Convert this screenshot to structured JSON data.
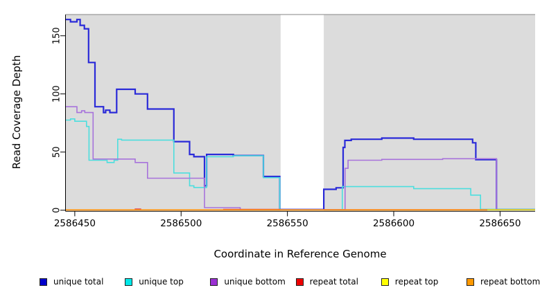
{
  "chart_data": {
    "type": "line",
    "subtype": "step-coverage-plot",
    "title": "",
    "xlabel": "Coordinate in Reference Genome",
    "ylabel": "Read Coverage Depth",
    "xlim": [
      2586445.8,
      2586666.5
    ],
    "ylim": [
      0,
      168
    ],
    "x_ticks": [
      2586450,
      2586500,
      2586550,
      2586600,
      2586650
    ],
    "x_tick_labels": [
      "2586450",
      "2586500",
      "2586550",
      "2586600",
      "2586650"
    ],
    "y_ticks": [
      0,
      50,
      100,
      150
    ],
    "y_tick_labels": [
      "0",
      "50",
      "100",
      "150"
    ],
    "grid": false,
    "legend_position": "bottom",
    "panel_bg": "#dcdcdc",
    "panel_top_border": "#858585",
    "axis_color": "#000000",
    "no_data_gap": {
      "from": 2586546.8,
      "to": 2586567.1,
      "fill": "#ffffff"
    },
    "series": [
      {
        "name": "unique total",
        "line_color": "#2a2ad8",
        "legend_color": "#0000cc",
        "line_width": 2.2,
        "end": 2586666.5,
        "points": [
          [
            2586445.8,
            164
          ],
          [
            2586448,
            162
          ],
          [
            2586451,
            164
          ],
          [
            2586452.5,
            159
          ],
          [
            2586454.5,
            156
          ],
          [
            2586456.5,
            127
          ],
          [
            2586459.5,
            89
          ],
          [
            2586463.5,
            84
          ],
          [
            2586464.5,
            86
          ],
          [
            2586466.5,
            84
          ],
          [
            2586469.7,
            104
          ],
          [
            2586478.4,
            100
          ],
          [
            2586484.2,
            87
          ],
          [
            2586496.6,
            59
          ],
          [
            2586504,
            48
          ],
          [
            2586506,
            46
          ],
          [
            2586511,
            21
          ],
          [
            2586512,
            48
          ],
          [
            2586524.6,
            47
          ],
          [
            2586538.7,
            29
          ],
          [
            2586546.4,
            0.6
          ],
          [
            2586567.1,
            18
          ],
          [
            2586572.9,
            19.3
          ],
          [
            2586576.2,
            54
          ],
          [
            2586577,
            60
          ],
          [
            2586580,
            61
          ],
          [
            2586594.4,
            62
          ],
          [
            2586609.4,
            61
          ],
          [
            2586637.1,
            58
          ],
          [
            2586638.6,
            43.5
          ],
          [
            2586648.3,
            0.6
          ]
        ]
      },
      {
        "name": "unique top",
        "line_color": "#4cdede",
        "legend_color": "#00e8e8",
        "line_width": 1.6,
        "end": 2586666.5,
        "points": [
          [
            2586445.8,
            77.5
          ],
          [
            2586448,
            78.5
          ],
          [
            2586450,
            76.5
          ],
          [
            2586455.5,
            72
          ],
          [
            2586456.7,
            43
          ],
          [
            2586465.2,
            41
          ],
          [
            2586468.5,
            43
          ],
          [
            2586470.2,
            61
          ],
          [
            2586472,
            60.3
          ],
          [
            2586496.6,
            32
          ],
          [
            2586504,
            21
          ],
          [
            2586506,
            19.5
          ],
          [
            2586512,
            46
          ],
          [
            2586524.6,
            46.8
          ],
          [
            2586538.7,
            28
          ],
          [
            2586546.4,
            0.4
          ],
          [
            2586575.8,
            20.3
          ],
          [
            2586609.4,
            18.5
          ],
          [
            2586636.2,
            13
          ],
          [
            2586640.8,
            0.8
          ]
        ]
      },
      {
        "name": "unique bottom",
        "line_color": "#a772db",
        "legend_color": "#9a30d2",
        "line_width": 1.6,
        "end": 2586666.5,
        "points": [
          [
            2586445.8,
            89
          ],
          [
            2586451,
            84
          ],
          [
            2586453.2,
            85.5
          ],
          [
            2586454.7,
            84
          ],
          [
            2586458.6,
            44
          ],
          [
            2586478.4,
            41
          ],
          [
            2586484.2,
            27.5
          ],
          [
            2586511,
            2.2
          ],
          [
            2586527.8,
            0.5
          ],
          [
            2586577.1,
            36
          ],
          [
            2586578.5,
            43
          ],
          [
            2586594.4,
            43.7
          ],
          [
            2586623,
            44.3
          ],
          [
            2586648.3,
            0.3
          ]
        ]
      },
      {
        "name": "repeat total",
        "line_color": "#d94055",
        "legend_color": "#ee0000",
        "line_width": 1.4,
        "end": 2586666.5,
        "points": [
          [
            2586445.8,
            0.3
          ],
          [
            2586478.4,
            1.0
          ],
          [
            2586481,
            0.3
          ],
          [
            2586520,
            0.8
          ],
          [
            2586546.4,
            0.3
          ],
          [
            2586567.1,
            0.5
          ]
        ]
      },
      {
        "name": "repeat top",
        "line_color": "#f5f500",
        "legend_color": "#ffff00",
        "line_width": 1.4,
        "end": 2586666.5,
        "points": [
          [
            2586445.8,
            0.3
          ]
        ]
      },
      {
        "name": "repeat bottom",
        "line_color": "#ff9714",
        "legend_color": "#ff9900",
        "line_width": 1.8,
        "end": 2586644,
        "points": [
          [
            2586445.8,
            0.25
          ]
        ]
      }
    ]
  }
}
